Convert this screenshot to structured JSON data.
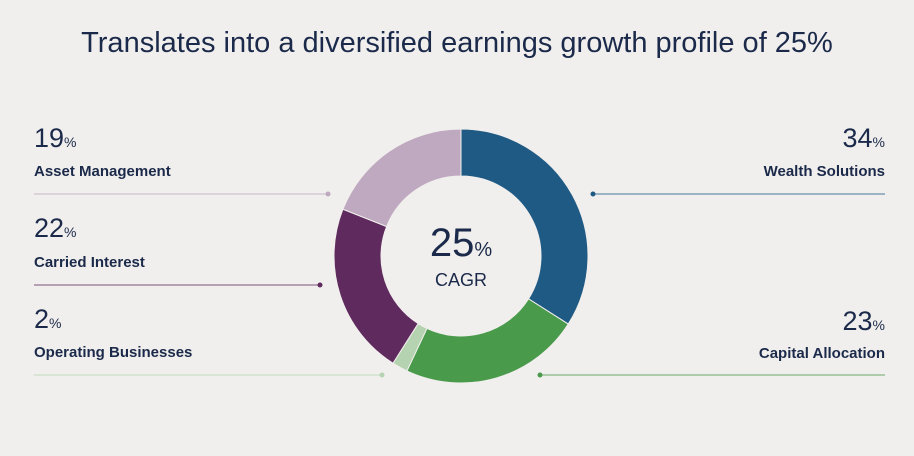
{
  "chart_data": {
    "type": "donut",
    "title": "Translates into a diversified earnings growth profile of 25%",
    "unit": "%",
    "center_value": 25,
    "center_label": "CAGR",
    "series": [
      {
        "name": "Wealth Solutions",
        "color": "#1f5a85",
        "values": [
          34
        ]
      },
      {
        "name": "Capital Allocation",
        "color": "#4a9a4c",
        "values": [
          23
        ]
      },
      {
        "name": "Operating Businesses",
        "color": "#b5d3b0",
        "values": [
          2
        ]
      },
      {
        "name": "Carried Interest",
        "color": "#5f2a5e",
        "values": [
          22
        ]
      },
      {
        "name": "Asset Management",
        "color": "#bfa9c0",
        "values": [
          19
        ]
      }
    ]
  }
}
